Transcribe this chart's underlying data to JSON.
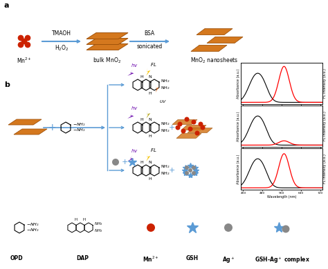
{
  "background": "#ffffff",
  "arrow_color": "#5b9bd5",
  "orange_color": "#d4781e",
  "orange_edge": "#a0520a",
  "red_color": "#cc2200",
  "purple_color": "#6600aa",
  "yellow_color": "#f5c200",
  "orange_bolt": "#d46010",
  "grey_color": "#888888",
  "dark_blue": "#5b9bd5",
  "label_a": "a",
  "label_b": "b",
  "label_mn": "Mn$^{2+}$",
  "label_bulk": "bulk MnO$_2$",
  "label_nano": "MnO$_2$ nanosheets",
  "label_tmaoh": "TMAOH",
  "label_h2o2": "H$_2$O$_2$",
  "label_bsa": "BSA",
  "label_sonicated": "sonicated",
  "label_opd": "OPD",
  "label_dap": "DAP",
  "label_mn2": "Mn$^{2+}$",
  "label_gsh": "GSH",
  "label_ag": "Ag$^+$",
  "label_gsh_ag": "GSH-Ag$^+$ complex",
  "label_wavelength": "Wavelength (nm)",
  "label_absorbance": "Absorbance (a.u.)",
  "label_fl_intensity": "FL Intensity (a.u.)",
  "abs_peak": 450,
  "fl_peak": 570,
  "fig_w": 4.74,
  "fig_h": 3.9,
  "dpi": 100
}
